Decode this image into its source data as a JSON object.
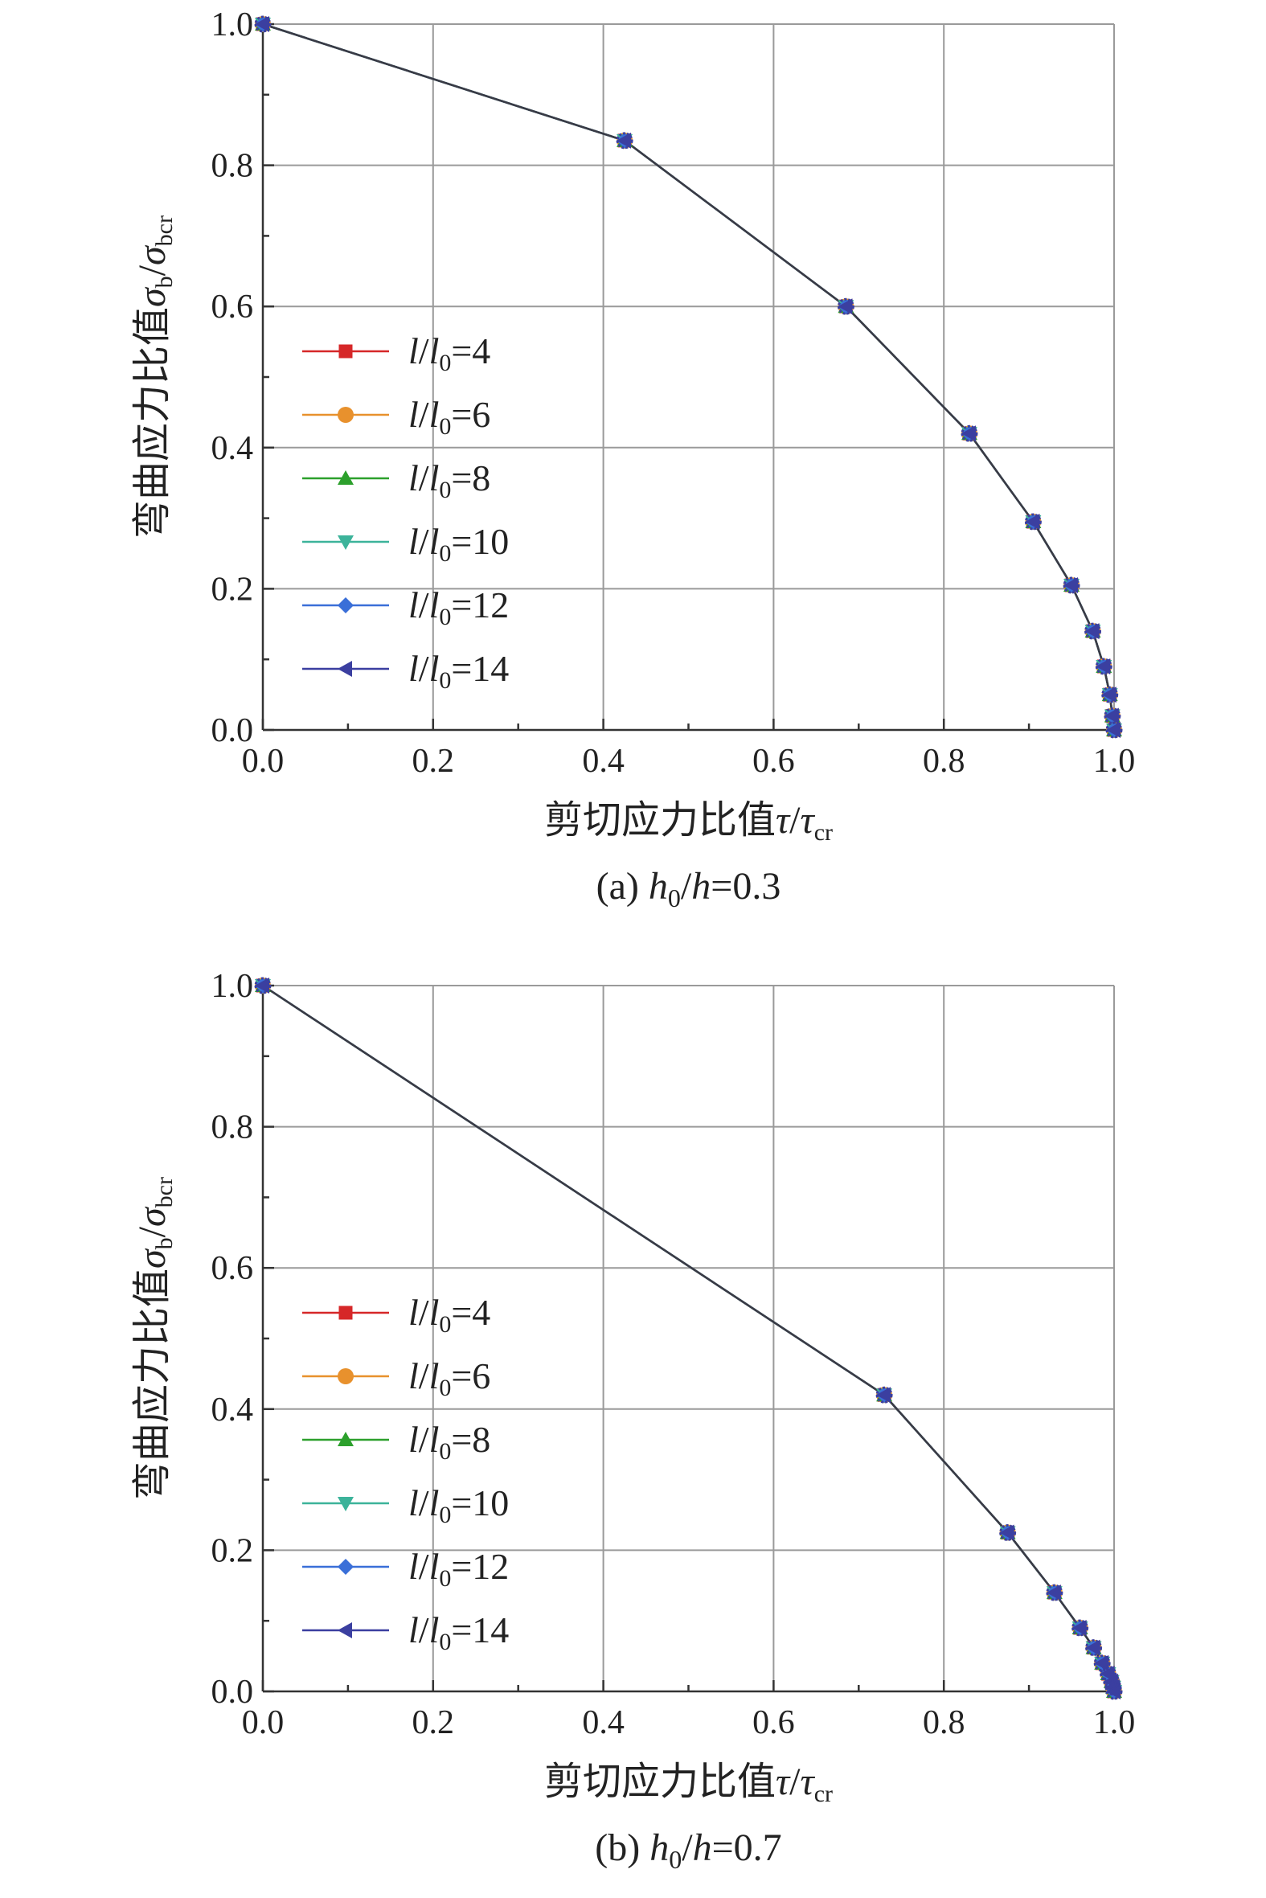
{
  "chart_data": [
    {
      "type": "line",
      "caption": "(a) h0/h=0.3",
      "xlabel": "剪切应力比值τ/τcr",
      "ylabel": "弯曲应力比值σb/σbcr",
      "xlim": [
        0,
        1.0
      ],
      "ylim": [
        0,
        1.0
      ],
      "xticks": [
        "0.0",
        "0.2",
        "0.4",
        "0.6",
        "0.8",
        "1.0"
      ],
      "yticks": [
        "0.0",
        "0.2",
        "0.4",
        "0.6",
        "0.8",
        "1.0"
      ],
      "grid": true,
      "legend_position": "center-left",
      "x": [
        0.0,
        0.425,
        0.685,
        0.83,
        0.905,
        0.95,
        0.975,
        0.988,
        0.995,
        0.998,
        1.0
      ],
      "series": [
        {
          "name": "l/l0=4",
          "color": "#d62728",
          "marker": "square",
          "values": [
            1.0,
            0.835,
            0.6,
            0.42,
            0.295,
            0.205,
            0.14,
            0.09,
            0.05,
            0.02,
            0.0
          ]
        },
        {
          "name": "l/l0=6",
          "color": "#e8912d",
          "marker": "circle",
          "values": [
            1.0,
            0.835,
            0.6,
            0.42,
            0.295,
            0.205,
            0.14,
            0.09,
            0.05,
            0.02,
            0.0
          ]
        },
        {
          "name": "l/l0=8",
          "color": "#2ca02c",
          "marker": "triangle-up",
          "values": [
            1.0,
            0.835,
            0.6,
            0.42,
            0.295,
            0.205,
            0.14,
            0.09,
            0.05,
            0.02,
            0.0
          ]
        },
        {
          "name": "l/l0=10",
          "color": "#3cb39a",
          "marker": "triangle-down",
          "values": [
            1.0,
            0.835,
            0.6,
            0.42,
            0.295,
            0.205,
            0.14,
            0.09,
            0.05,
            0.02,
            0.0
          ]
        },
        {
          "name": "l/l0=12",
          "color": "#3a6fd8",
          "marker": "diamond",
          "values": [
            1.0,
            0.835,
            0.6,
            0.42,
            0.295,
            0.205,
            0.14,
            0.09,
            0.05,
            0.02,
            0.0
          ]
        },
        {
          "name": "l/l0=14",
          "color": "#3b3fa0",
          "marker": "triangle-left",
          "values": [
            1.0,
            0.835,
            0.6,
            0.42,
            0.295,
            0.205,
            0.14,
            0.09,
            0.05,
            0.02,
            0.0
          ]
        }
      ]
    },
    {
      "type": "line",
      "caption": "(b) h0/h=0.7",
      "xlabel": "剪切应力比值τ/τcr",
      "ylabel": "弯曲应力比值σb/σbcr",
      "xlim": [
        0,
        1.0
      ],
      "ylim": [
        0,
        1.0
      ],
      "xticks": [
        "0.0",
        "0.2",
        "0.4",
        "0.6",
        "0.8",
        "1.0"
      ],
      "yticks": [
        "0.0",
        "0.2",
        "0.4",
        "0.6",
        "0.8",
        "1.0"
      ],
      "grid": true,
      "legend_position": "center-left",
      "x": [
        0.0,
        0.73,
        0.875,
        0.93,
        0.96,
        0.976,
        0.986,
        0.993,
        0.997,
        0.999,
        1.0
      ],
      "series": [
        {
          "name": "l/l0=4",
          "color": "#d62728",
          "marker": "square",
          "values": [
            1.0,
            0.42,
            0.225,
            0.14,
            0.09,
            0.062,
            0.04,
            0.025,
            0.014,
            0.006,
            0.0
          ]
        },
        {
          "name": "l/l0=6",
          "color": "#e8912d",
          "marker": "circle",
          "values": [
            1.0,
            0.42,
            0.225,
            0.14,
            0.09,
            0.062,
            0.04,
            0.025,
            0.014,
            0.006,
            0.0
          ]
        },
        {
          "name": "l/l0=8",
          "color": "#2ca02c",
          "marker": "triangle-up",
          "values": [
            1.0,
            0.42,
            0.225,
            0.14,
            0.09,
            0.062,
            0.04,
            0.025,
            0.014,
            0.006,
            0.0
          ]
        },
        {
          "name": "l/l0=10",
          "color": "#3cb39a",
          "marker": "triangle-down",
          "values": [
            1.0,
            0.42,
            0.225,
            0.14,
            0.09,
            0.062,
            0.04,
            0.025,
            0.014,
            0.006,
            0.0
          ]
        },
        {
          "name": "l/l0=12",
          "color": "#3a6fd8",
          "marker": "diamond",
          "values": [
            1.0,
            0.42,
            0.225,
            0.14,
            0.09,
            0.062,
            0.04,
            0.025,
            0.014,
            0.006,
            0.0
          ]
        },
        {
          "name": "l/l0=14",
          "color": "#3b3fa0",
          "marker": "triangle-left",
          "values": [
            1.0,
            0.42,
            0.225,
            0.14,
            0.09,
            0.062,
            0.04,
            0.025,
            0.014,
            0.006,
            0.0
          ]
        }
      ]
    }
  ]
}
